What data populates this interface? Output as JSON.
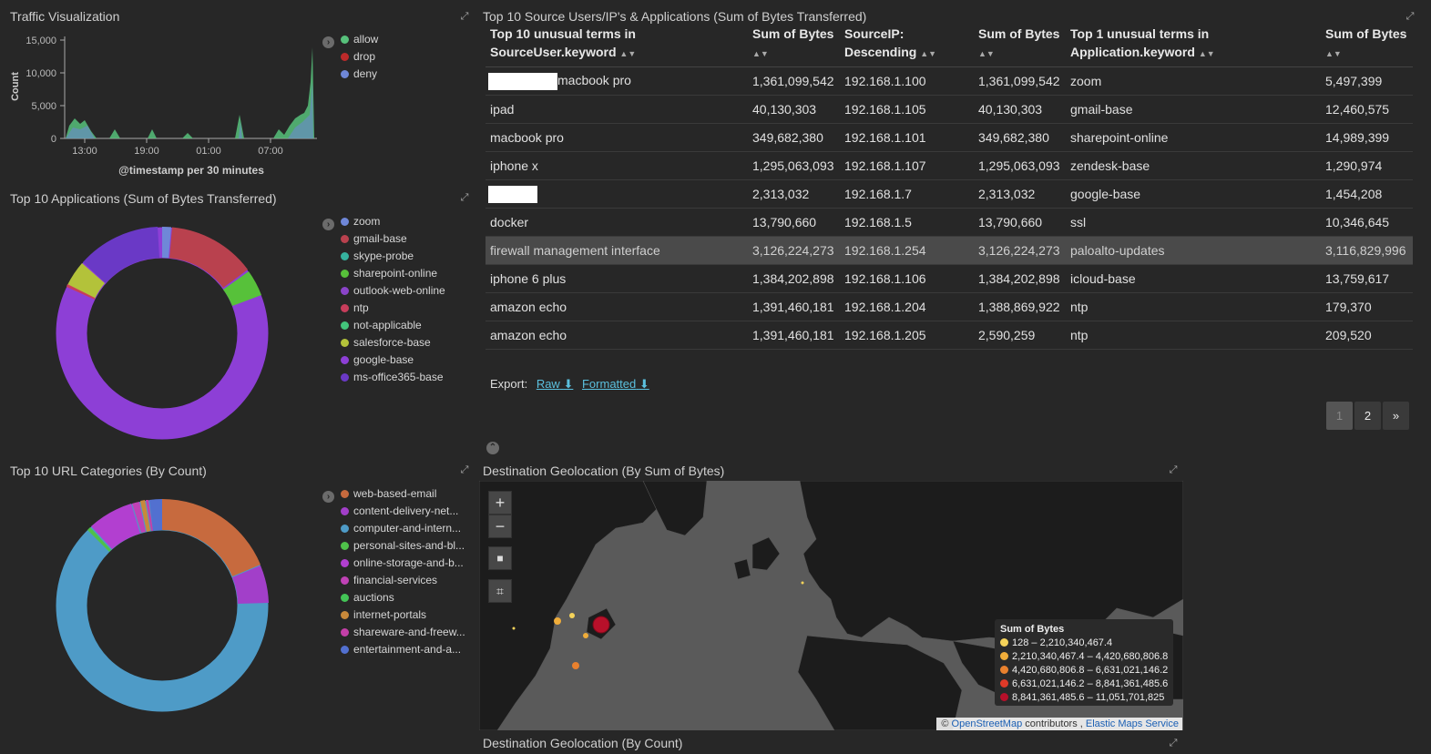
{
  "traffic": {
    "title": "Traffic Visualization",
    "y_label": "Count",
    "x_label": "@timestamp per 30 minutes",
    "y_ticks": [
      "15,000",
      "10,000",
      "5,000",
      "0"
    ],
    "x_ticks": [
      "13:00",
      "19:00",
      "01:00",
      "07:00"
    ],
    "legend": [
      {
        "label": "allow",
        "color": "#57c17b"
      },
      {
        "label": "drop",
        "color": "#bc2a2a"
      },
      {
        "label": "deny",
        "color": "#6f87d8"
      }
    ]
  },
  "apps": {
    "title": "Top 10 Applications (Sum of Bytes Transferred)",
    "legend": [
      {
        "label": "zoom",
        "color": "#6f87d8"
      },
      {
        "label": "gmail-base",
        "color": "#b9414e"
      },
      {
        "label": "skype-probe",
        "color": "#36b29e"
      },
      {
        "label": "sharepoint-online",
        "color": "#57c13a"
      },
      {
        "label": "outlook-web-online",
        "color": "#8a44c9"
      },
      {
        "label": "ntp",
        "color": "#c73d5b"
      },
      {
        "label": "not-applicable",
        "color": "#43c47b"
      },
      {
        "label": "salesforce-base",
        "color": "#b3c23a"
      },
      {
        "label": "google-base",
        "color": "#8d3fd6"
      },
      {
        "label": "ms-office365-base",
        "color": "#6a39c6"
      }
    ]
  },
  "urls": {
    "title": "Top 10 URL Categories (By Count)",
    "legend": [
      {
        "label": "web-based-email",
        "color": "#c76a3e"
      },
      {
        "label": "content-delivery-net...",
        "color": "#a23fc9"
      },
      {
        "label": "computer-and-intern...",
        "color": "#4e9bc7"
      },
      {
        "label": "personal-sites-and-bl...",
        "color": "#4fc14a"
      },
      {
        "label": "online-storage-and-b...",
        "color": "#b23fd0"
      },
      {
        "label": "financial-services",
        "color": "#c042b6"
      },
      {
        "label": "auctions",
        "color": "#43c456"
      },
      {
        "label": "internet-portals",
        "color": "#c8893a"
      },
      {
        "label": "shareware-and-freew...",
        "color": "#c43fa8"
      },
      {
        "label": "entertainment-and-a...",
        "color": "#5270d0"
      }
    ]
  },
  "table": {
    "title": "Top 10 Source Users/IP's & Applications (Sum of Bytes Transferred)",
    "headers": [
      {
        "line1": "Top 10 unusual terms in",
        "line2": "SourceUser.keyword"
      },
      {
        "line1": "Sum of Bytes",
        "line2": ""
      },
      {
        "line1": "SourceIP:",
        "line2": "Descending"
      },
      {
        "line1": "Sum of Bytes",
        "line2": ""
      },
      {
        "line1": "Top 1 unusual terms in",
        "line2": "Application.keyword"
      },
      {
        "line1": "Sum of Bytes",
        "line2": ""
      }
    ],
    "rows": [
      {
        "user": "macbook pro",
        "bytes1": "1,361,099,542",
        "ip": "192.168.1.100",
        "bytes2": "1,361,099,542",
        "app": "zoom",
        "bytes3": "5,497,399"
      },
      {
        "user": "ipad",
        "bytes1": "40,130,303",
        "ip": "192.168.1.105",
        "bytes2": "40,130,303",
        "app": "gmail-base",
        "bytes3": "12,460,575"
      },
      {
        "user": "macbook pro",
        "bytes1": "349,682,380",
        "ip": "192.168.1.101",
        "bytes2": "349,682,380",
        "app": "sharepoint-online",
        "bytes3": "14,989,399"
      },
      {
        "user": "iphone x",
        "bytes1": "1,295,063,093",
        "ip": "192.168.1.107",
        "bytes2": "1,295,063,093",
        "app": "zendesk-base",
        "bytes3": "1,290,974"
      },
      {
        "user": "",
        "bytes1": "2,313,032",
        "ip": "192.168.1.7",
        "bytes2": "2,313,032",
        "app": "google-base",
        "bytes3": "1,454,208"
      },
      {
        "user": "docker",
        "bytes1": "13,790,660",
        "ip": "192.168.1.5",
        "bytes2": "13,790,660",
        "app": "ssl",
        "bytes3": "10,346,645"
      },
      {
        "user": "firewall management interface",
        "bytes1": "3,126,224,273",
        "ip": "192.168.1.254",
        "bytes2": "3,126,224,273",
        "app": "paloalto-updates",
        "bytes3": "3,116,829,996"
      },
      {
        "user": "iphone 6 plus",
        "bytes1": "1,384,202,898",
        "ip": "192.168.1.106",
        "bytes2": "1,384,202,898",
        "app": "icloud-base",
        "bytes3": "13,759,617"
      },
      {
        "user": "amazon echo",
        "bytes1": "1,391,460,181",
        "ip": "192.168.1.204",
        "bytes2": "1,388,869,922",
        "app": "ntp",
        "bytes3": "179,370"
      },
      {
        "user": "amazon echo",
        "bytes1": "1,391,460,181",
        "ip": "192.168.1.205",
        "bytes2": "2,590,259",
        "app": "ntp",
        "bytes3": "209,520"
      }
    ],
    "export_label": "Export:",
    "export_raw": "Raw",
    "export_formatted": "Formatted",
    "pages": [
      "1",
      "2",
      "»"
    ]
  },
  "geo": {
    "title": "Destination Geolocation (By Sum of Bytes)",
    "title2": "Destination Geolocation (By Count)",
    "zoom_in": "+",
    "zoom_out": "−",
    "legend_title": "Sum of Bytes",
    "legend": [
      {
        "label": "128 – 2,210,340,467.4",
        "color": "#f5d35a"
      },
      {
        "label": "2,210,340,467.4 – 4,420,680,806.8",
        "color": "#f0ad3a"
      },
      {
        "label": "4,420,680,806.8 – 6,631,021,146.2",
        "color": "#e9812e"
      },
      {
        "label": "6,631,021,146.2 – 8,841,361,485.6",
        "color": "#df3a28"
      },
      {
        "label": "8,841,361,485.6 – 11,051,701,825",
        "color": "#b8102a"
      }
    ],
    "attrib_prefix": "©",
    "attrib_osm": "OpenStreetMap",
    "attrib_mid": "contributors ,",
    "attrib_ems": "Elastic Maps Service"
  }
}
